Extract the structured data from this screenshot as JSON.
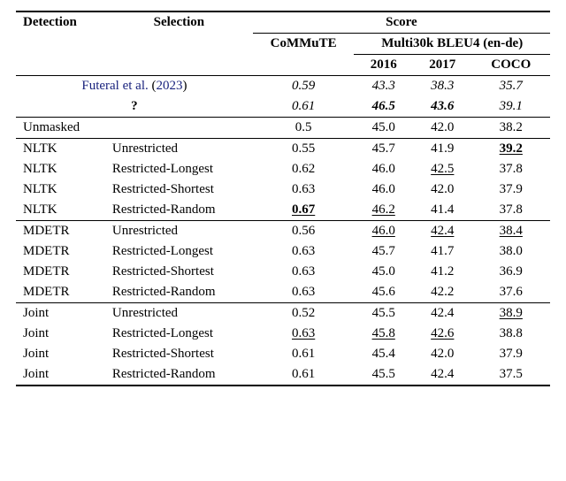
{
  "headers": {
    "detection": "Detection",
    "selection": "Selection",
    "score": "Score",
    "commute": "CoMMuTE",
    "multi30k": "Multi30k BLEU4 (en-de)",
    "y2016": "2016",
    "y2017": "2017",
    "coco": "COCO"
  },
  "baselines": [
    {
      "label_html": "<a class='ref' href='#'>Futeral et al.</a> (<a class='ref' href='#'>2023</a>)",
      "commute": "0.59",
      "y2016": "43.3",
      "y2017": "38.3",
      "coco": "35.7",
      "style": "italic"
    },
    {
      "label_html": "<b>?</b>",
      "commute": "0.61",
      "y2016": "46.5",
      "y2016_style": "bold-italic",
      "y2017": "43.6",
      "y2017_style": "bold-italic",
      "coco": "39.1",
      "style": "italic"
    }
  ],
  "unmasked": {
    "detection": "Unmasked",
    "selection": "",
    "commute": "0.5",
    "y2016": "45.0",
    "y2017": "42.0",
    "coco": "38.2"
  },
  "groups": [
    {
      "rows": [
        {
          "detection": "NLTK",
          "selection": "Unrestricted",
          "commute": "0.55",
          "y2016": "45.7",
          "y2017": "41.9",
          "coco": "39.2",
          "coco_style": "bold-underline"
        },
        {
          "detection": "NLTK",
          "selection": "Restricted-Longest",
          "commute": "0.62",
          "y2016": "46.0",
          "y2017": "42.5",
          "y2017_style": "underline",
          "coco": "37.8"
        },
        {
          "detection": "NLTK",
          "selection": "Restricted-Shortest",
          "commute": "0.63",
          "y2016": "46.0",
          "y2017": "42.0",
          "coco": "37.9"
        },
        {
          "detection": "NLTK",
          "selection": "Restricted-Random",
          "commute": "0.67",
          "commute_style": "bold-underline",
          "y2016": "46.2",
          "y2016_style": "underline",
          "y2017": "41.4",
          "coco": "37.8"
        }
      ]
    },
    {
      "rows": [
        {
          "detection": "MDETR",
          "selection": "Unrestricted",
          "commute": "0.56",
          "y2016": "46.0",
          "y2016_style": "underline",
          "y2017": "42.4",
          "y2017_style": "underline",
          "coco": "38.4",
          "coco_style": "underline"
        },
        {
          "detection": "MDETR",
          "selection": "Restricted-Longest",
          "commute": "0.63",
          "y2016": "45.7",
          "y2017": "41.7",
          "coco": "38.0"
        },
        {
          "detection": "MDETR",
          "selection": "Restricted-Shortest",
          "commute": "0.63",
          "y2016": "45.0",
          "y2017": "41.2",
          "coco": "36.9"
        },
        {
          "detection": "MDETR",
          "selection": "Restricted-Random",
          "commute": "0.63",
          "y2016": "45.6",
          "y2017": "42.2",
          "coco": "37.6"
        }
      ]
    },
    {
      "rows": [
        {
          "detection": "Joint",
          "selection": "Unrestricted",
          "commute": "0.52",
          "y2016": "45.5",
          "y2017": "42.4",
          "coco": "38.9",
          "coco_style": "underline"
        },
        {
          "detection": "Joint",
          "selection": "Restricted-Longest",
          "commute": "0.63",
          "commute_style": "underline",
          "y2016": "45.8",
          "y2016_style": "underline",
          "y2017": "42.6",
          "y2017_style": "underline",
          "coco": "38.8"
        },
        {
          "detection": "Joint",
          "selection": "Restricted-Shortest",
          "commute": "0.61",
          "y2016": "45.4",
          "y2017": "42.0",
          "coco": "37.9"
        },
        {
          "detection": "Joint",
          "selection": "Restricted-Random",
          "commute": "0.61",
          "y2016": "45.5",
          "y2017": "42.4",
          "coco": "37.5"
        }
      ]
    }
  ]
}
